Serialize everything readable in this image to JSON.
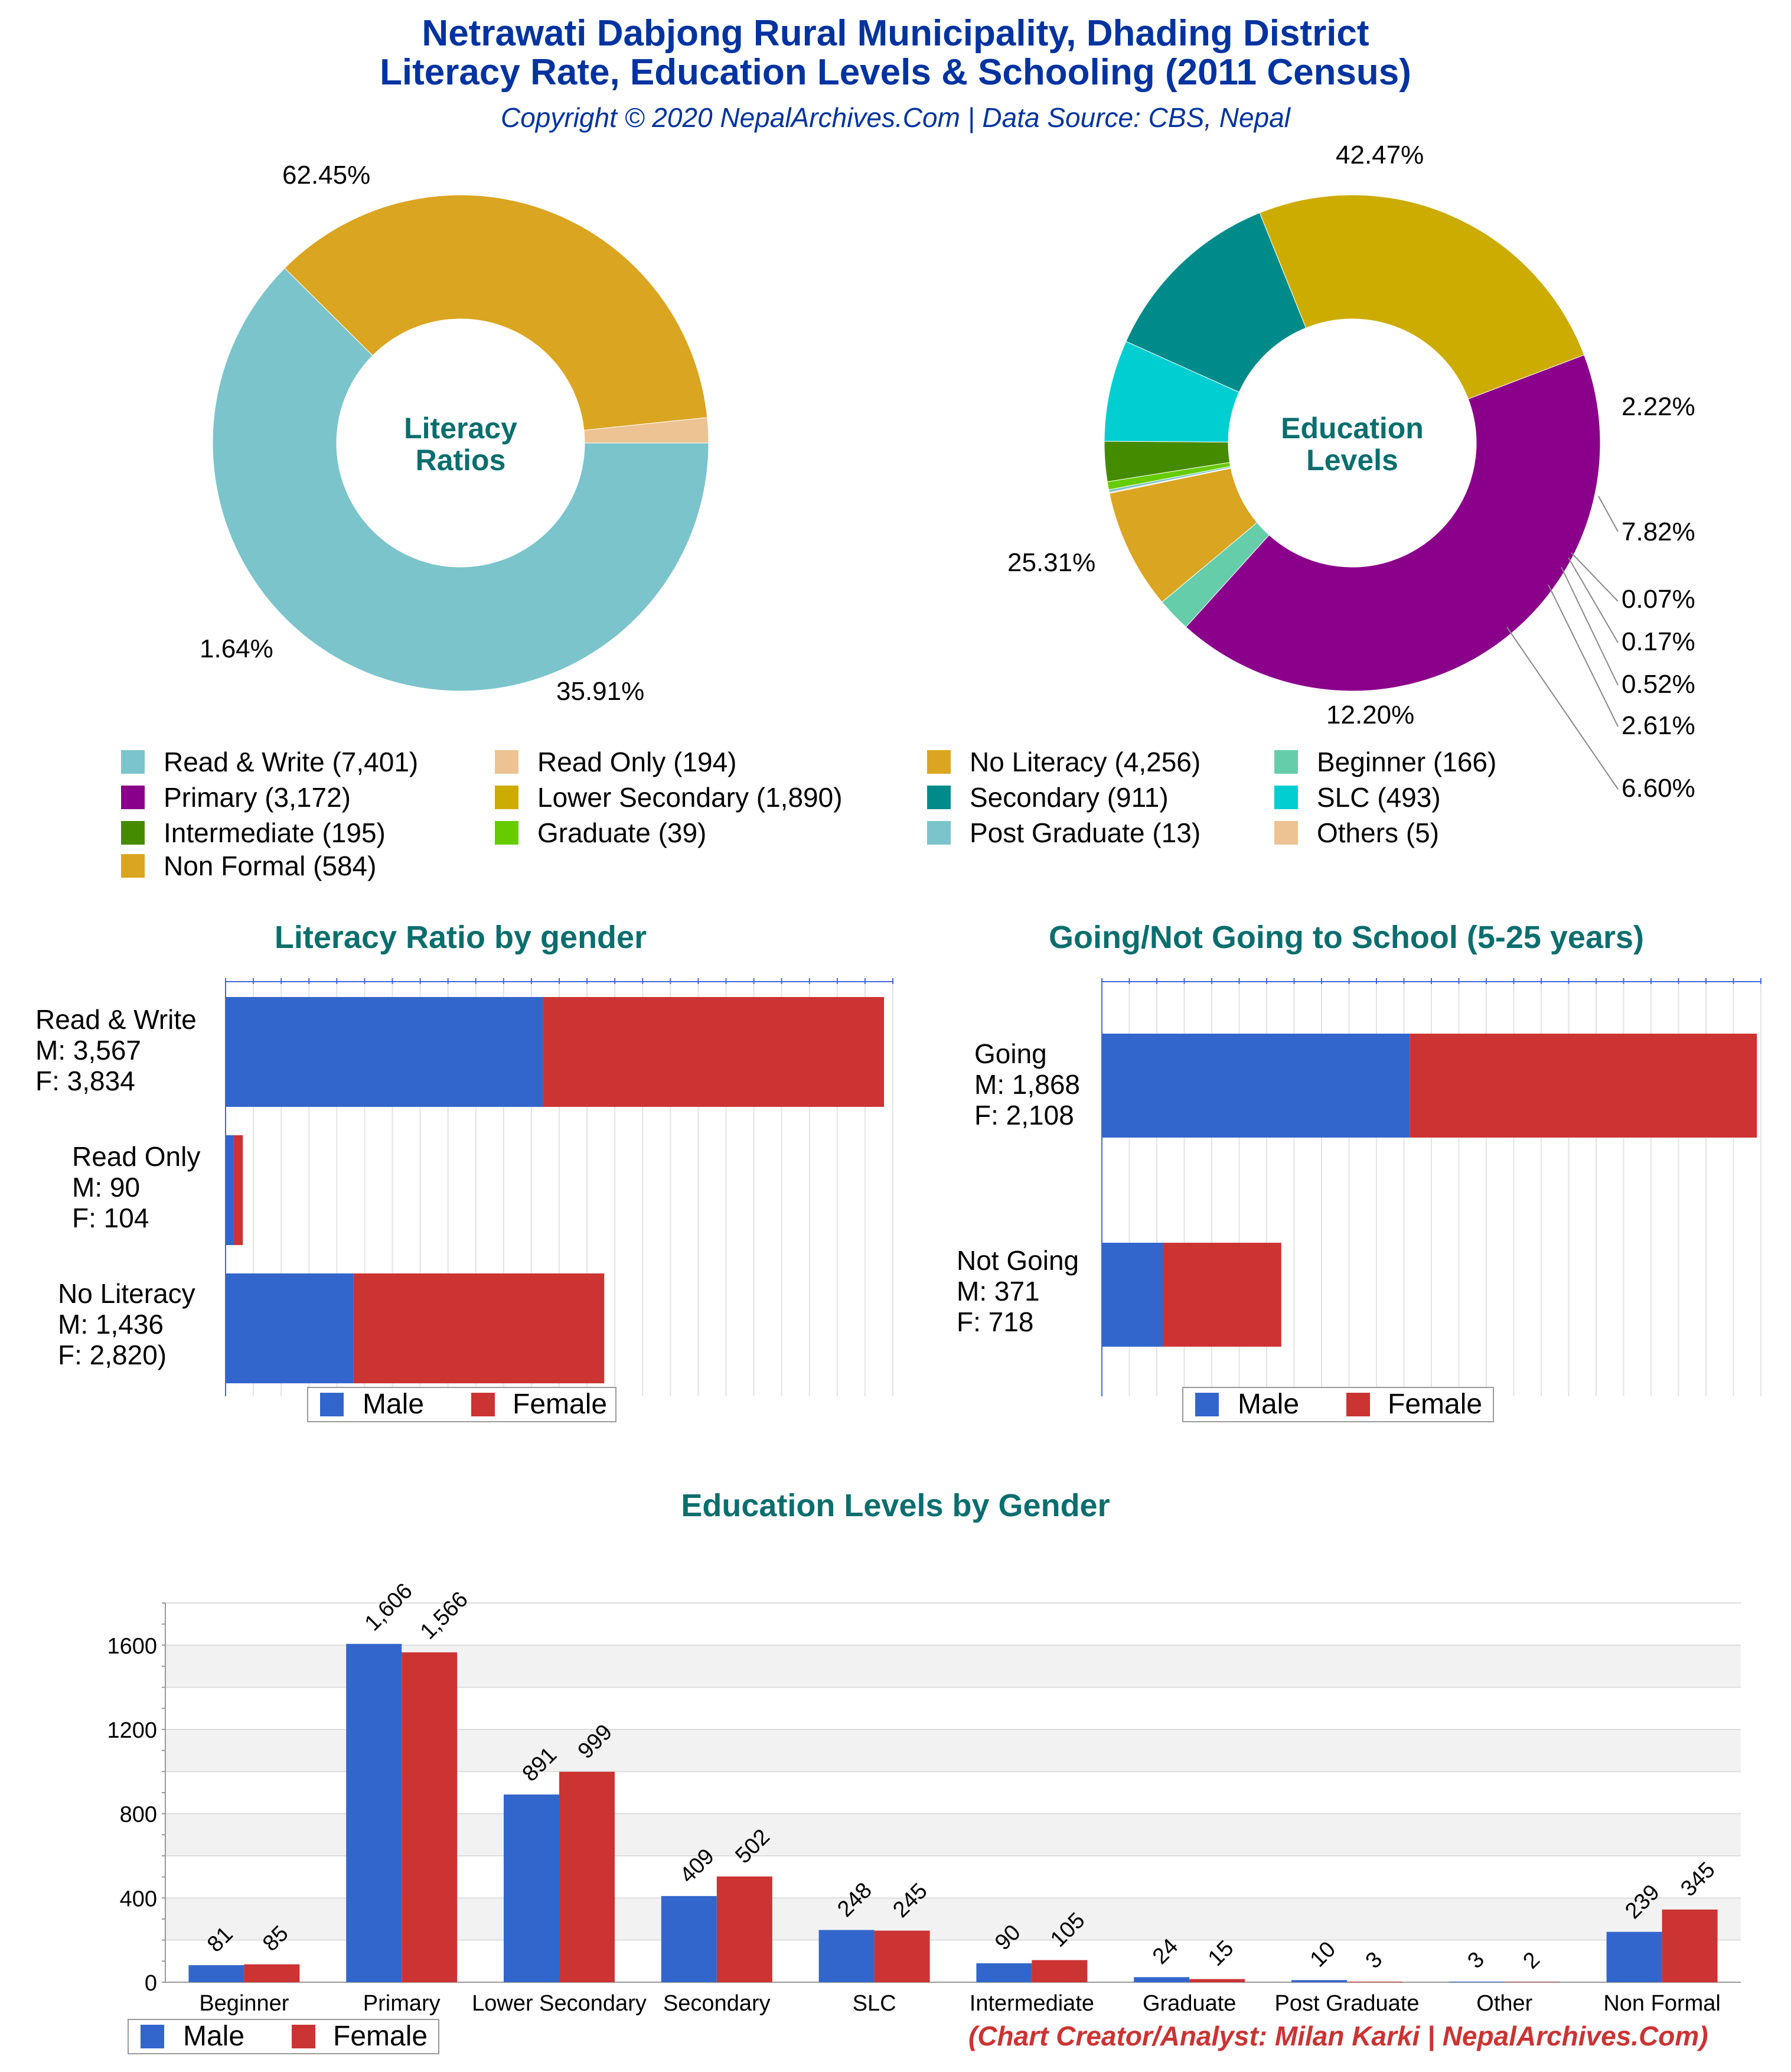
{
  "header": {
    "title_line1": "Netrawati Dabjong Rural Municipality, Dhading District",
    "title_line2": "Literacy Rate, Education Levels & Schooling (2011 Census)",
    "subtitle": "Copyright © 2020 NepalArchives.Com | Data Source: CBS, Nepal"
  },
  "credit": "(Chart Creator/Analyst: Milan Karki | NepalArchives.Com)",
  "chart_data": [
    {
      "type": "pie",
      "title": "Literacy Ratios",
      "center_label": [
        "Literacy",
        "Ratios"
      ],
      "slices": [
        {
          "label": "Read & Write",
          "value": 7401,
          "pct": "62.45%",
          "color": "#7cc4cc"
        },
        {
          "label": "No Literacy",
          "value": 4256,
          "pct": "35.91%",
          "color": "#daa520"
        },
        {
          "label": "Read Only",
          "value": 194,
          "pct": "1.64%",
          "color": "#edc393"
        }
      ]
    },
    {
      "type": "pie",
      "title": "Education Levels",
      "center_label": [
        "Education",
        "Levels"
      ],
      "slices": [
        {
          "label": "Primary",
          "value": 3172,
          "pct": "42.47%",
          "color": "#8b008b"
        },
        {
          "label": "Beginner",
          "value": 166,
          "pct": "2.22%",
          "color": "#66cdaa"
        },
        {
          "label": "Non Formal",
          "value": 584,
          "pct": "7.82%",
          "color": "#daa520"
        },
        {
          "label": "Others",
          "value": 5,
          "pct": "0.07%",
          "color": "#edc393"
        },
        {
          "label": "Post Graduate",
          "value": 13,
          "pct": "0.17%",
          "color": "#7cc4cc"
        },
        {
          "label": "Graduate",
          "value": 39,
          "pct": "0.52%",
          "color": "#66cc00"
        },
        {
          "label": "Intermediate",
          "value": 195,
          "pct": "2.61%",
          "color": "#458b00"
        },
        {
          "label": "SLC",
          "value": 493,
          "pct": "6.60%",
          "color": "#00ced1"
        },
        {
          "label": "Secondary",
          "value": 911,
          "pct": "12.20%",
          "color": "#008b8b"
        },
        {
          "label": "Lower Secondary",
          "value": 1890,
          "pct": "25.31%",
          "color": "#ccac00"
        }
      ]
    },
    {
      "type": "bar",
      "orientation": "horizontal",
      "stacked": true,
      "title": "Literacy Ratio by gender",
      "categories": [
        "Read & Write\nM: 3,567\nF: 3,834",
        "Read Only\nM: 90\nF: 104",
        "No Literacy\nM: 1,436\nF: 2,820)"
      ],
      "series": [
        {
          "name": "Male",
          "values": [
            3567,
            90,
            1436
          ],
          "color": "#3366cc"
        },
        {
          "name": "Female",
          "values": [
            3834,
            104,
            2820
          ],
          "color": "#cc3333"
        }
      ],
      "xlim": [
        0,
        7500
      ],
      "legend": "bottom"
    },
    {
      "type": "bar",
      "orientation": "horizontal",
      "stacked": true,
      "title": "Going/Not Going to School (5-25 years)",
      "categories": [
        "Going\nM: 1,868\nF: 2,108",
        "Not Going\nM: 371\nF: 718"
      ],
      "series": [
        {
          "name": "Male",
          "values": [
            1868,
            371
          ],
          "color": "#3366cc"
        },
        {
          "name": "Female",
          "values": [
            2108,
            718
          ],
          "color": "#cc3333"
        }
      ],
      "xlim": [
        0,
        4000
      ],
      "legend": "bottom"
    },
    {
      "type": "bar",
      "title": "Education Levels by Gender",
      "categories": [
        "Beginner",
        "Primary",
        "Lower Secondary",
        "Secondary",
        "SLC",
        "Intermediate",
        "Graduate",
        "Post Graduate",
        "Other",
        "Non Formal"
      ],
      "series": [
        {
          "name": "Male",
          "values": [
            81,
            1606,
            891,
            409,
            248,
            90,
            24,
            10,
            3,
            239
          ],
          "labels": [
            "81",
            "1,606",
            "891",
            "409",
            "248",
            "90",
            "24",
            "10",
            "3",
            "239"
          ],
          "color": "#3366cc"
        },
        {
          "name": "Female",
          "values": [
            85,
            1566,
            999,
            502,
            245,
            105,
            15,
            3,
            2,
            345
          ],
          "labels": [
            "85",
            "1,566",
            "999",
            "502",
            "245",
            "105",
            "15",
            "3",
            "2",
            "345"
          ],
          "color": "#cc3333"
        }
      ],
      "yticks": [
        "0",
        "400",
        "800",
        "1200",
        "1600"
      ],
      "ylim": [
        0,
        1800
      ],
      "grid": true,
      "legend": "bottom-left"
    }
  ],
  "legend_items": [
    {
      "text": "Read & Write (7,401)",
      "color": "#7cc4cc"
    },
    {
      "text": "Primary (3,172)",
      "color": "#8b008b"
    },
    {
      "text": "Intermediate (195)",
      "color": "#458b00"
    },
    {
      "text": "Non Formal (584)",
      "color": "#daa520"
    },
    {
      "text": "Read Only (194)",
      "color": "#edc393"
    },
    {
      "text": "Lower Secondary (1,890)",
      "color": "#ccac00"
    },
    {
      "text": "Graduate (39)",
      "color": "#66cc00"
    },
    {
      "text": "No Literacy (4,256)",
      "color": "#daa520"
    },
    {
      "text": "Secondary (911)",
      "color": "#008b8b"
    },
    {
      "text": "Post Graduate (13)",
      "color": "#7cc4cc"
    },
    {
      "text": "Beginner (166)",
      "color": "#66cdaa"
    },
    {
      "text": "SLC (493)",
      "color": "#00ced1"
    },
    {
      "text": "Others (5)",
      "color": "#edc393"
    }
  ],
  "gender_legend": {
    "male": "Male",
    "female": "Female"
  }
}
